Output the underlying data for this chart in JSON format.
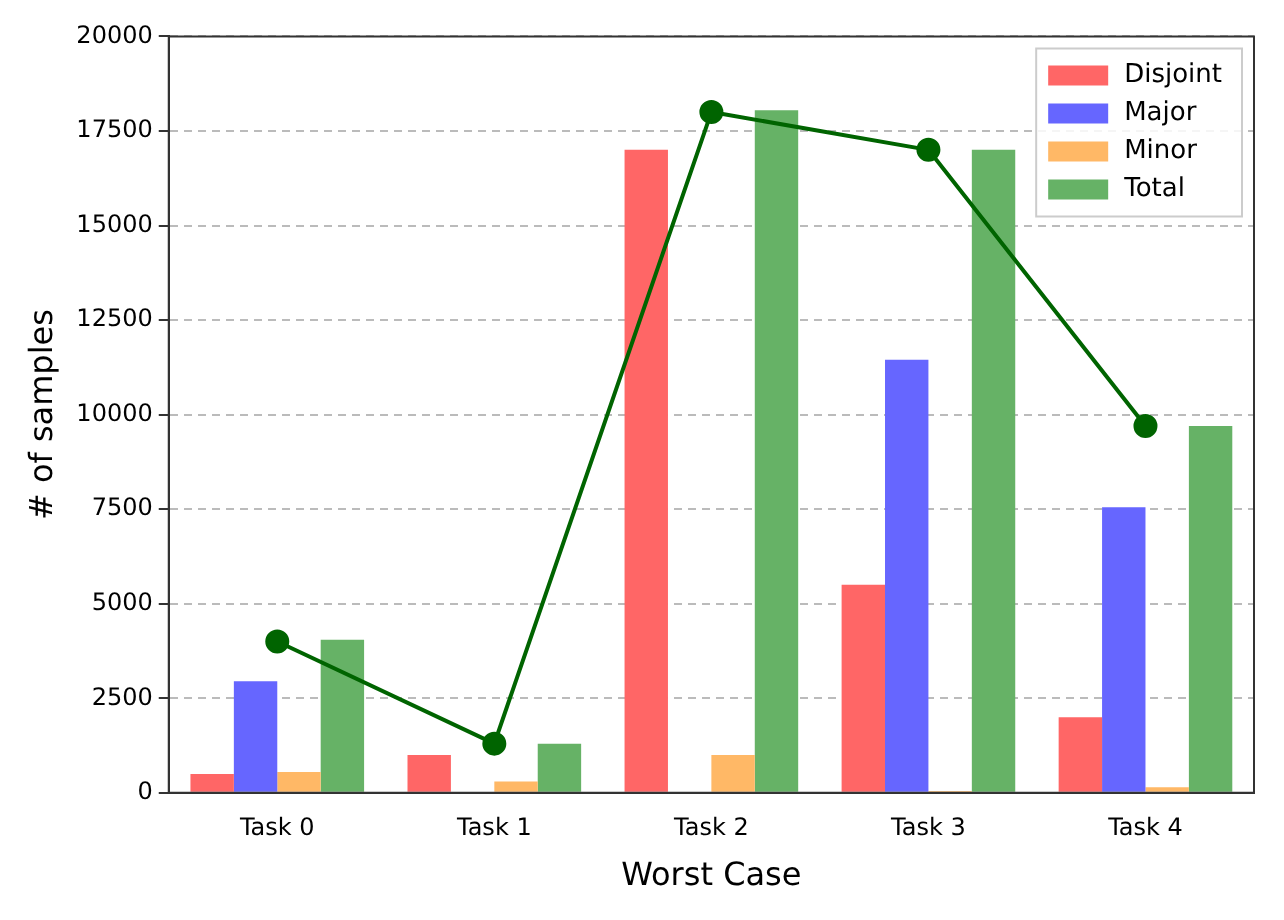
{
  "chart_data": {
    "type": "bar",
    "xlabel": "Worst Case",
    "ylabel": "# of samples",
    "categories": [
      "Task 0",
      "Task 1",
      "Task 2",
      "Task 3",
      "Task 4"
    ],
    "series": [
      {
        "name": "Disjoint",
        "color": "#ff6666",
        "values": [
          500,
          1000,
          17000,
          5500,
          2000
        ]
      },
      {
        "name": "Major",
        "color": "#6666ff",
        "values": [
          2950,
          0,
          0,
          11450,
          7550
        ]
      },
      {
        "name": "Minor",
        "color": "#ffb866",
        "values": [
          550,
          300,
          1000,
          50,
          150
        ]
      },
      {
        "name": "Total",
        "color": "#66b266",
        "values": [
          4050,
          1300,
          18050,
          17000,
          9700
        ]
      },
      {
        "type": "line",
        "color": "#006400",
        "values": [
          4000,
          1300,
          18000,
          17000,
          9700
        ]
      }
    ],
    "ylim": [
      0,
      20000
    ],
    "yticks": [
      0,
      2500,
      5000,
      7500,
      10000,
      12500,
      15000,
      17500,
      20000
    ],
    "grid": "y",
    "legend": "top right",
    "marker": "circle",
    "line_style": "solid"
  }
}
